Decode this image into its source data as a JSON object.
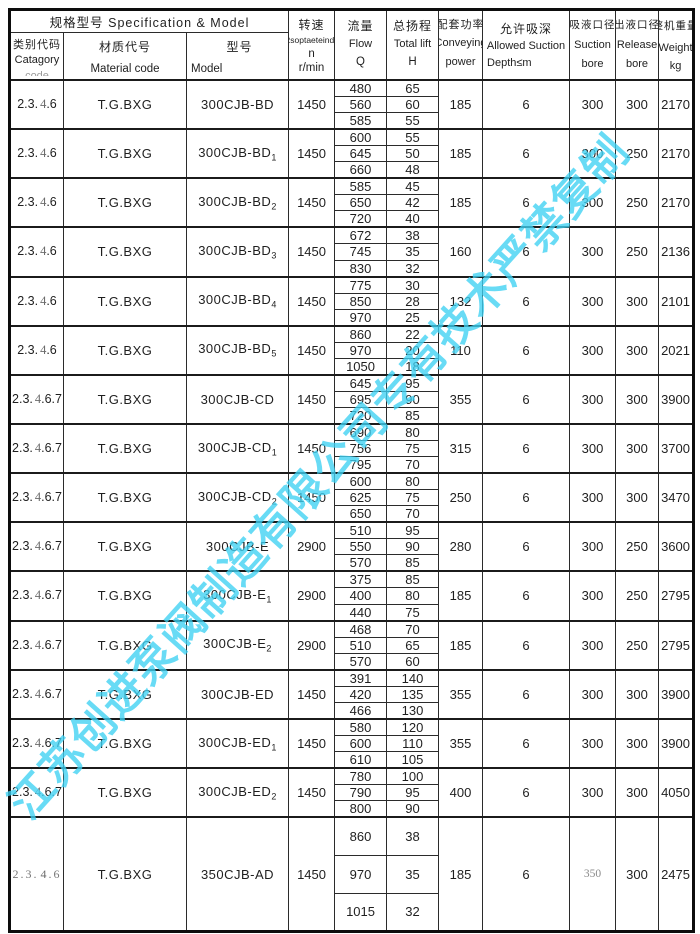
{
  "header": {
    "spec_model": "规格型号 Specification & Model",
    "category": {
      "zh": "类别代码",
      "en": "Catagory",
      "en2": "code"
    },
    "material": {
      "zh": "材质代号",
      "en": "Material code"
    },
    "model": {
      "zh": "型号",
      "en": "Model"
    },
    "speed": {
      "zh": "转速",
      "en": "Rsoptaeteindg",
      "sym": "n",
      "unit": "r/min"
    },
    "flow": {
      "zh": "流量",
      "en": "Flow",
      "sym": "Q"
    },
    "lift": {
      "zh": "总扬程",
      "en": "Total lift",
      "sym": "H"
    },
    "power": {
      "zh": "配套功率",
      "en": "Conveying",
      "en2": "power"
    },
    "depth": {
      "zh": "允许吸深",
      "en": "Allowed Suction",
      "en2": "Depth≤m"
    },
    "suction": {
      "zh": "吸液口径",
      "en": "Suction",
      "en2": "bore"
    },
    "release": {
      "zh": "出液口径",
      "en": "Release",
      "en2": "bore"
    },
    "weight": {
      "zh": "整机重量",
      "en": "Weight",
      "unit": "kg"
    }
  },
  "watermark": {
    "text": "江苏创进泵阀制造有限公司专有技术严禁复制",
    "color": "#3ED1F3"
  },
  "table": {
    "rows": [
      {
        "cat": "2.3.4.6",
        "material": "T.G.BXG",
        "model": "300CJB-BD",
        "model_sub": "",
        "speed": "1450",
        "flow": [
          "480",
          "560",
          "585"
        ],
        "lift": [
          "65",
          "60",
          "55"
        ],
        "power": "185",
        "depth": "6",
        "suction": "300",
        "release": "300",
        "weight": "2170"
      },
      {
        "cat": "2.3.4.6",
        "material": "T.G.BXG",
        "model": "300CJB-BD",
        "model_sub": "1",
        "speed": "1450",
        "flow": [
          "600",
          "645",
          "660"
        ],
        "lift": [
          "55",
          "50",
          "48"
        ],
        "power": "185",
        "depth": "6",
        "suction": "300",
        "release": "250",
        "weight": "2170"
      },
      {
        "cat": "2.3.4.6",
        "material": "T.G.BXG",
        "model": "300CJB-BD",
        "model_sub": "2",
        "speed": "1450",
        "flow": [
          "585",
          "650",
          "720"
        ],
        "lift": [
          "45",
          "42",
          "40"
        ],
        "power": "185",
        "depth": "6",
        "suction": "300",
        "release": "250",
        "weight": "2170"
      },
      {
        "cat": "2.3.4.6",
        "material": "T.G.BXG",
        "model": "300CJB-BD",
        "model_sub": "3",
        "speed": "1450",
        "flow": [
          "672",
          "745",
          "830"
        ],
        "lift": [
          "38",
          "35",
          "32"
        ],
        "power": "160",
        "depth": "6",
        "suction": "300",
        "release": "250",
        "weight": "2136"
      },
      {
        "cat": "2.3.4.6",
        "material": "T.G.BXG",
        "model": "300CJB-BD",
        "model_sub": "4",
        "speed": "1450",
        "flow": [
          "775",
          "850",
          "970"
        ],
        "lift": [
          "30",
          "28",
          "25"
        ],
        "power": "132",
        "depth": "6",
        "suction": "300",
        "release": "300",
        "weight": "2101"
      },
      {
        "cat": "2.3.4.6",
        "material": "T.G.BXG",
        "model": "300CJB-BD",
        "model_sub": "5",
        "speed": "1450",
        "flow": [
          "860",
          "970",
          "1050"
        ],
        "lift": [
          "22",
          "20",
          "18"
        ],
        "power": "110",
        "depth": "6",
        "suction": "300",
        "release": "300",
        "weight": "2021"
      },
      {
        "cat": "2.3.4.6.7",
        "material": "T.G.BXG",
        "model": "300CJB-CD",
        "model_sub": "",
        "speed": "1450",
        "flow": [
          "645",
          "695",
          "720"
        ],
        "lift": [
          "95",
          "90",
          "85"
        ],
        "power": "355",
        "depth": "6",
        "suction": "300",
        "release": "300",
        "weight": "3900"
      },
      {
        "cat": "2.3.4.6.7",
        "material": "T.G.BXG",
        "model": "300CJB-CD",
        "model_sub": "1",
        "speed": "1450",
        "flow": [
          "690",
          "756",
          "795"
        ],
        "lift": [
          "80",
          "75",
          "70"
        ],
        "power": "315",
        "depth": "6",
        "suction": "300",
        "release": "300",
        "weight": "3700"
      },
      {
        "cat": "2.3.4.6.7",
        "material": "T.G.BXG",
        "model": "300CJB-CD",
        "model_sub": "2",
        "speed": "1450",
        "flow": [
          "600",
          "625",
          "650"
        ],
        "lift": [
          "80",
          "75",
          "70"
        ],
        "power": "250",
        "depth": "6",
        "suction": "300",
        "release": "300",
        "weight": "3470"
      },
      {
        "cat": "2.3.4.6.7",
        "material": "T.G.BXG",
        "model": "300CJB-E",
        "model_sub": "",
        "speed": "2900",
        "flow": [
          "510",
          "550",
          "570"
        ],
        "lift": [
          "95",
          "90",
          "85"
        ],
        "power": "280",
        "depth": "6",
        "suction": "300",
        "release": "250",
        "weight": "3600"
      },
      {
        "cat": "2.3.4.6.7",
        "material": "T.G.BXG",
        "model": "300CJB-E",
        "model_sub": "1",
        "speed": "2900",
        "flow": [
          "375",
          "400",
          "440"
        ],
        "lift": [
          "85",
          "80",
          "75"
        ],
        "power": "185",
        "depth": "6",
        "suction": "300",
        "release": "250",
        "weight": "2795"
      },
      {
        "cat": "2.3.4.6.7",
        "material": "T.G.BXG",
        "model": "300CJB-E",
        "model_sub": "2",
        "speed": "2900",
        "flow": [
          "468",
          "510",
          "570"
        ],
        "lift": [
          "70",
          "65",
          "60"
        ],
        "power": "185",
        "depth": "6",
        "suction": "300",
        "release": "250",
        "weight": "2795"
      },
      {
        "cat": "2.3.4.6.7",
        "material": "T.G.BXG",
        "model": "300CJB-ED",
        "model_sub": "",
        "speed": "1450",
        "flow": [
          "391",
          "420",
          "466"
        ],
        "lift": [
          "140",
          "135",
          "130"
        ],
        "power": "355",
        "depth": "6",
        "suction": "300",
        "release": "300",
        "weight": "3900"
      },
      {
        "cat": "2.3.4.6.7",
        "material": "T.G.BXG",
        "model": "300CJB-ED",
        "model_sub": "1",
        "speed": "1450",
        "flow": [
          "580",
          "600",
          "610"
        ],
        "lift": [
          "120",
          "110",
          "105"
        ],
        "power": "355",
        "depth": "6",
        "suction": "300",
        "release": "300",
        "weight": "3900"
      },
      {
        "cat": "2.3.4.6.7",
        "material": "T.G.BXG",
        "model": "300CJB-ED",
        "model_sub": "2",
        "speed": "1450",
        "flow": [
          "780",
          "790",
          "800"
        ],
        "lift": [
          "100",
          "95",
          "90"
        ],
        "power": "400",
        "depth": "6",
        "suction": "300",
        "release": "300",
        "weight": "4050"
      },
      {
        "cat": "2.3.4.6",
        "material": "T.G.BXG",
        "model": "350CJB-AD",
        "model_sub": "",
        "speed": "1450",
        "flow": [
          "860",
          "970",
          "1015"
        ],
        "lift": [
          "38",
          "35",
          "32"
        ],
        "power": "185",
        "depth": "6",
        "suction": "350",
        "release": "300",
        "weight": "2475",
        "tall": true,
        "faded_cat": true,
        "faded_suction": true
      }
    ]
  }
}
